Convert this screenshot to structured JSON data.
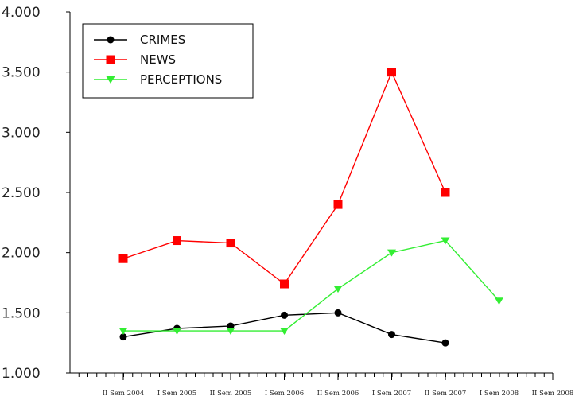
{
  "chart_data": {
    "type": "line",
    "title": "",
    "xlabel": "",
    "ylabel": "",
    "categories": [
      "II Sem 2004",
      "I Sem 2005",
      "II Sem 2005",
      "I Sem 2006",
      "II Sem 2006",
      "I Sem 2007",
      "II Sem 2007",
      "I Sem 2008",
      "II Sem 2008"
    ],
    "x_axis_slots": 9,
    "y_ticks": [
      "1.000",
      "1.500",
      "2.000",
      "2.500",
      "3.000",
      "3.500",
      "4.000"
    ],
    "ylim": [
      1000,
      4000
    ],
    "grid": false,
    "legend_position": "top-left",
    "series": [
      {
        "name": "CRIMES",
        "color": "#000000",
        "marker": "circle",
        "values": [
          1300,
          1370,
          1390,
          1480,
          1500,
          1320,
          1250,
          null,
          null
        ]
      },
      {
        "name": "NEWS",
        "color": "#ff0000",
        "marker": "square",
        "values": [
          1950,
          2100,
          2080,
          1740,
          2400,
          3500,
          2500,
          null,
          null
        ]
      },
      {
        "name": "PERCEPTIONS",
        "color": "#33ee33",
        "marker": "triangle-down",
        "values": [
          1350,
          1350,
          1350,
          1350,
          1700,
          2000,
          2100,
          1600,
          null
        ]
      }
    ]
  }
}
